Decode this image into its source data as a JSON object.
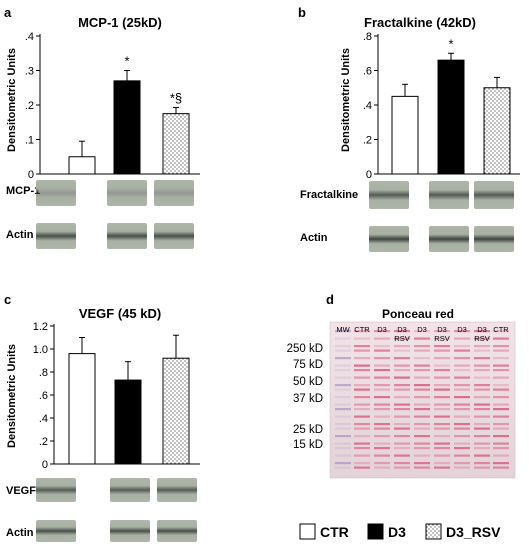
{
  "panels": {
    "a": {
      "letter": "a",
      "title": "MCP-1 (25kD)",
      "ylabel": "Densitometric Units",
      "blot_rows": [
        "MCP-1",
        "Actin"
      ]
    },
    "b": {
      "letter": "b",
      "title": "Fractalkine (42kD)",
      "ylabel": "Densitometric Units",
      "blot_rows": [
        "Fractalkine",
        "Actin"
      ]
    },
    "c": {
      "letter": "c",
      "title": "VEGF (45 kD)",
      "ylabel": "Densitometric Units",
      "blot_rows": [
        "VEGF",
        "Actin"
      ]
    },
    "d": {
      "letter": "d",
      "title": "Ponceau red",
      "lane_labels": [
        {
          "text": "MW"
        },
        {
          "text": "CTR"
        },
        {
          "text": "D3"
        },
        {
          "text": "D3\nRSV"
        },
        {
          "text": "D3"
        },
        {
          "text": "D3\nRSV"
        },
        {
          "text": "D3"
        },
        {
          "text": "D3\nRSV"
        },
        {
          "text": "CTR"
        }
      ],
      "markers": [
        "250 kD",
        "75 kD",
        "50 kD",
        "37 kD",
        "25 kD",
        "15 kD"
      ]
    }
  },
  "legend": [
    {
      "label": "CTR",
      "fill": "white"
    },
    {
      "label": "D3",
      "fill": "black"
    },
    {
      "label": "D3_RSV",
      "fill": "dots"
    }
  ],
  "chart_data": [
    {
      "type": "bar",
      "title": "MCP-1 (25kD)",
      "ylabel": "Densitometric Units",
      "categories": [
        "CTR",
        "D3",
        "D3_RSV"
      ],
      "values": [
        0.05,
        0.27,
        0.175
      ],
      "errors": [
        0.045,
        0.03,
        0.018
      ],
      "annotations": [
        "",
        "*",
        "*§"
      ],
      "ylim": [
        0,
        0.4
      ],
      "yticks": [
        0,
        0.1,
        0.2,
        0.3,
        0.4
      ],
      "yticklabels": [
        "0",
        ".1",
        ".2",
        ".3",
        ".4"
      ]
    },
    {
      "type": "bar",
      "title": "Fractalkine (42kD)",
      "ylabel": "Densitometric Units",
      "categories": [
        "CTR",
        "D3",
        "D3_RSV"
      ],
      "values": [
        0.45,
        0.66,
        0.5
      ],
      "errors": [
        0.07,
        0.04,
        0.06
      ],
      "annotations": [
        "",
        "*",
        ""
      ],
      "ylim": [
        0,
        0.8
      ],
      "yticks": [
        0,
        0.2,
        0.4,
        0.6,
        0.8
      ],
      "yticklabels": [
        "0",
        ".2",
        ".4",
        ".6",
        ".8"
      ]
    },
    {
      "type": "bar",
      "title": "VEGF (45 kD)",
      "ylabel": "Densitometric Units",
      "categories": [
        "CTR",
        "D3",
        "D3_RSV"
      ],
      "values": [
        0.96,
        0.73,
        0.92
      ],
      "errors": [
        0.14,
        0.16,
        0.2
      ],
      "annotations": [
        "",
        "",
        ""
      ],
      "ylim": [
        0,
        1.2
      ],
      "yticks": [
        0,
        0.2,
        0.4,
        0.6,
        0.8,
        1.0,
        1.2
      ],
      "yticklabels": [
        "0",
        ".2",
        ".4",
        ".6",
        ".8",
        "1.0",
        "1.2"
      ]
    }
  ],
  "colors": {
    "bar_outline": "#000000",
    "blot_bg": "#a9b1a4",
    "band": "#2f3530",
    "ponceau_bg": "#e9d9dd",
    "ponceau_band": "#d33a68"
  }
}
